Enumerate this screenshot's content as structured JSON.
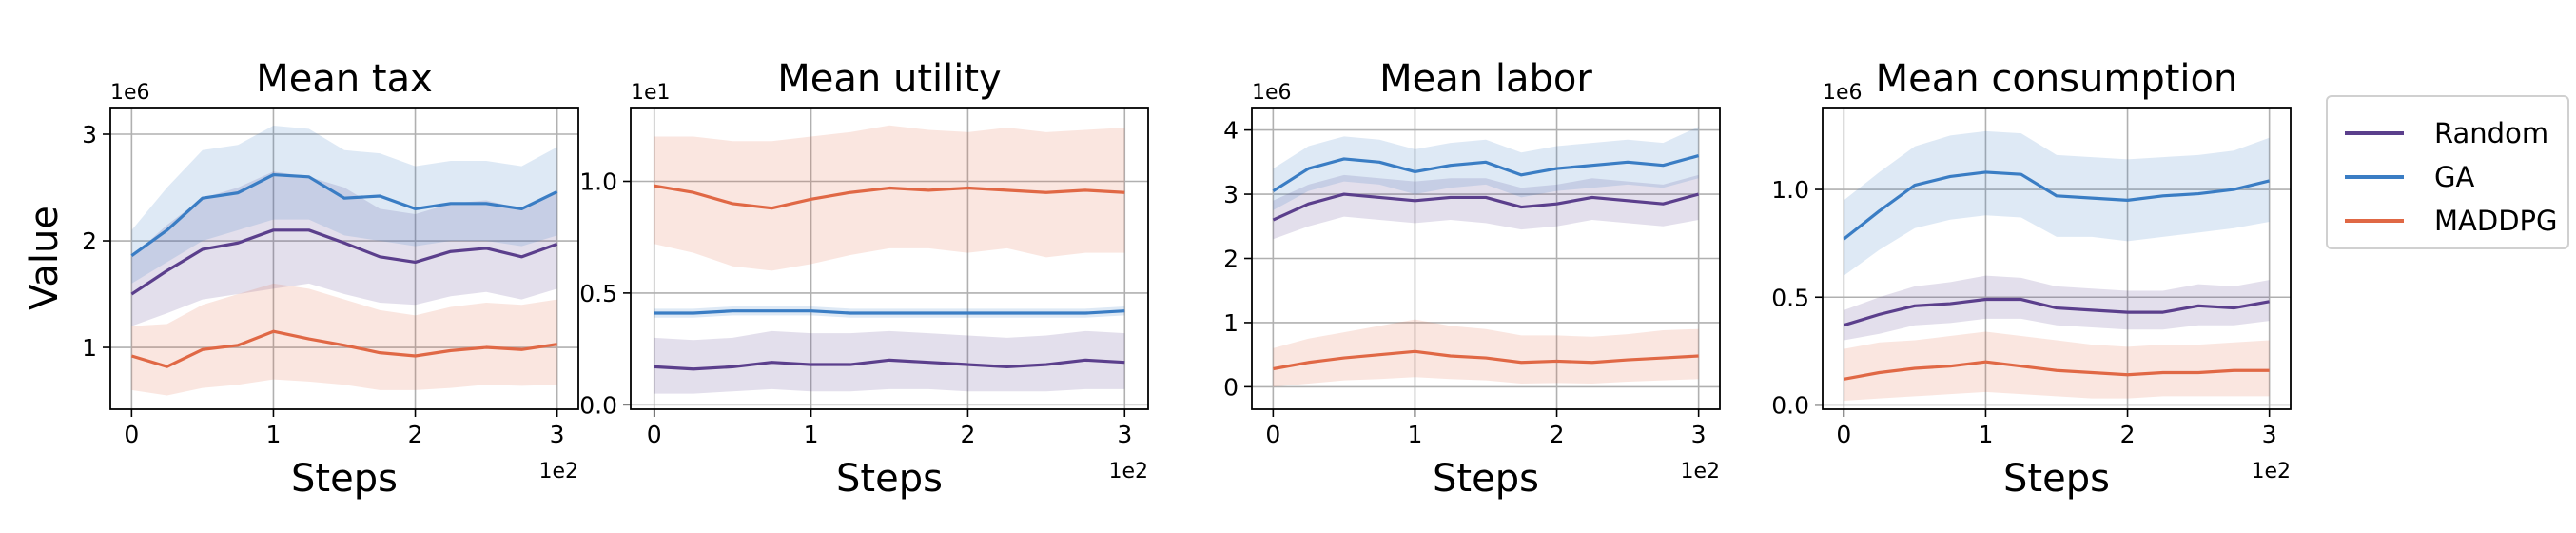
{
  "figure": {
    "ylabel": "Value",
    "colors": {
      "Random": "#5b3f8c",
      "GA": "#3a7dc4",
      "MADDPG": "#e06845"
    }
  },
  "legend": {
    "items": [
      {
        "label": "Random",
        "color": "#5b3f8c"
      },
      {
        "label": "GA",
        "color": "#3a7dc4"
      },
      {
        "label": "MADDPG",
        "color": "#e06845"
      }
    ]
  },
  "chart_data": [
    {
      "type": "line",
      "title": "Mean tax",
      "xlabel": "Steps",
      "ylabel": "Value",
      "x_offset_text": "1e2",
      "y_offset_text": "1e6",
      "xlim": [
        -0.15,
        3.15
      ],
      "ylim": [
        0.42,
        3.25
      ],
      "xticks": [
        0,
        1,
        2,
        3
      ],
      "yticks": [
        1,
        2,
        3
      ],
      "grid": true,
      "x": [
        0,
        0.25,
        0.5,
        0.75,
        1.0,
        1.25,
        1.5,
        1.75,
        2.0,
        2.25,
        2.5,
        2.75,
        3.0
      ],
      "series": [
        {
          "name": "Random",
          "values": [
            1.5,
            1.72,
            1.92,
            1.98,
            2.1,
            2.1,
            1.98,
            1.85,
            1.8,
            1.9,
            1.93,
            1.85,
            1.97
          ],
          "lower": [
            1.2,
            1.32,
            1.45,
            1.5,
            1.55,
            1.6,
            1.5,
            1.42,
            1.4,
            1.48,
            1.52,
            1.45,
            1.55
          ],
          "upper": [
            1.85,
            2.15,
            2.4,
            2.5,
            2.65,
            2.6,
            2.5,
            2.3,
            2.25,
            2.35,
            2.38,
            2.3,
            2.45
          ]
        },
        {
          "name": "GA",
          "values": [
            1.86,
            2.1,
            2.4,
            2.45,
            2.62,
            2.6,
            2.4,
            2.42,
            2.3,
            2.35,
            2.35,
            2.3,
            2.46
          ],
          "lower": [
            1.6,
            1.8,
            2.0,
            2.1,
            2.2,
            2.2,
            2.05,
            2.0,
            1.95,
            2.0,
            2.0,
            1.95,
            2.05
          ],
          "upper": [
            2.1,
            2.5,
            2.85,
            2.9,
            3.08,
            3.05,
            2.85,
            2.82,
            2.7,
            2.75,
            2.75,
            2.7,
            2.88
          ]
        },
        {
          "name": "MADDPG",
          "values": [
            0.92,
            0.82,
            0.98,
            1.02,
            1.15,
            1.08,
            1.02,
            0.95,
            0.92,
            0.97,
            1.0,
            0.98,
            1.03
          ],
          "lower": [
            0.6,
            0.55,
            0.62,
            0.65,
            0.7,
            0.68,
            0.65,
            0.6,
            0.6,
            0.62,
            0.65,
            0.64,
            0.65
          ],
          "upper": [
            1.2,
            1.22,
            1.4,
            1.5,
            1.6,
            1.55,
            1.45,
            1.35,
            1.3,
            1.38,
            1.42,
            1.4,
            1.45
          ]
        }
      ]
    },
    {
      "type": "line",
      "title": "Mean utility",
      "xlabel": "Steps",
      "ylabel": "",
      "x_offset_text": "1e2",
      "y_offset_text": "1e1",
      "xlim": [
        -0.15,
        3.15
      ],
      "ylim": [
        -0.02,
        1.33
      ],
      "xticks": [
        0,
        1,
        2,
        3
      ],
      "yticks": [
        0.0,
        0.5,
        1.0
      ],
      "ytick_labels": [
        "0.0",
        "0.5",
        "1.0"
      ],
      "grid": true,
      "x": [
        0,
        0.25,
        0.5,
        0.75,
        1.0,
        1.25,
        1.5,
        1.75,
        2.0,
        2.25,
        2.5,
        2.75,
        3.0
      ],
      "series": [
        {
          "name": "Random",
          "values": [
            0.17,
            0.16,
            0.17,
            0.19,
            0.18,
            0.18,
            0.2,
            0.19,
            0.18,
            0.17,
            0.18,
            0.2,
            0.19
          ],
          "lower": [
            0.05,
            0.05,
            0.06,
            0.07,
            0.06,
            0.06,
            0.07,
            0.07,
            0.06,
            0.06,
            0.06,
            0.07,
            0.07
          ],
          "upper": [
            0.3,
            0.29,
            0.3,
            0.33,
            0.32,
            0.32,
            0.33,
            0.32,
            0.31,
            0.3,
            0.31,
            0.33,
            0.32
          ]
        },
        {
          "name": "GA",
          "values": [
            0.41,
            0.41,
            0.42,
            0.42,
            0.42,
            0.41,
            0.41,
            0.41,
            0.41,
            0.41,
            0.41,
            0.41,
            0.42
          ],
          "lower": [
            0.39,
            0.39,
            0.4,
            0.4,
            0.4,
            0.39,
            0.39,
            0.39,
            0.39,
            0.39,
            0.39,
            0.39,
            0.4
          ],
          "upper": [
            0.43,
            0.43,
            0.44,
            0.44,
            0.44,
            0.43,
            0.43,
            0.43,
            0.43,
            0.43,
            0.43,
            0.43,
            0.44
          ]
        },
        {
          "name": "MADDPG",
          "values": [
            0.98,
            0.95,
            0.9,
            0.88,
            0.92,
            0.95,
            0.97,
            0.96,
            0.97,
            0.96,
            0.95,
            0.96,
            0.95
          ],
          "lower": [
            0.72,
            0.68,
            0.62,
            0.6,
            0.63,
            0.67,
            0.7,
            0.7,
            0.68,
            0.7,
            0.66,
            0.68,
            0.68
          ],
          "upper": [
            1.2,
            1.2,
            1.18,
            1.18,
            1.2,
            1.22,
            1.25,
            1.23,
            1.22,
            1.24,
            1.22,
            1.23,
            1.24
          ]
        }
      ]
    },
    {
      "type": "line",
      "title": "Mean labor",
      "xlabel": "Steps",
      "ylabel": "",
      "x_offset_text": "1e2",
      "y_offset_text": "1e6",
      "xlim": [
        -0.15,
        3.15
      ],
      "ylim": [
        -0.35,
        4.35
      ],
      "xticks": [
        0,
        1,
        2,
        3
      ],
      "yticks": [
        0,
        1,
        2,
        3,
        4
      ],
      "grid": true,
      "x": [
        0,
        0.25,
        0.5,
        0.75,
        1.0,
        1.25,
        1.5,
        1.75,
        2.0,
        2.25,
        2.5,
        2.75,
        3.0
      ],
      "series": [
        {
          "name": "Random",
          "values": [
            2.6,
            2.85,
            3.0,
            2.95,
            2.9,
            2.95,
            2.95,
            2.8,
            2.85,
            2.95,
            2.9,
            2.85,
            3.0
          ],
          "lower": [
            2.3,
            2.5,
            2.65,
            2.6,
            2.55,
            2.6,
            2.55,
            2.45,
            2.5,
            2.6,
            2.55,
            2.5,
            2.6
          ],
          "upper": [
            2.9,
            3.15,
            3.3,
            3.25,
            3.2,
            3.25,
            3.25,
            3.1,
            3.15,
            3.25,
            3.2,
            3.15,
            3.3
          ]
        },
        {
          "name": "GA",
          "values": [
            3.05,
            3.4,
            3.55,
            3.5,
            3.35,
            3.45,
            3.5,
            3.3,
            3.4,
            3.45,
            3.5,
            3.45,
            3.6
          ],
          "lower": [
            2.75,
            3.05,
            3.2,
            3.15,
            3.0,
            3.1,
            3.15,
            2.95,
            3.05,
            3.1,
            3.15,
            3.1,
            3.25
          ],
          "upper": [
            3.4,
            3.75,
            3.9,
            3.85,
            3.7,
            3.8,
            3.85,
            3.65,
            3.75,
            3.8,
            3.85,
            3.8,
            4.05
          ]
        },
        {
          "name": "MADDPG",
          "values": [
            0.28,
            0.38,
            0.45,
            0.5,
            0.55,
            0.48,
            0.45,
            0.38,
            0.4,
            0.38,
            0.42,
            0.45,
            0.48
          ],
          "lower": [
            0.0,
            0.05,
            0.1,
            0.12,
            0.15,
            0.12,
            0.1,
            0.05,
            0.06,
            0.05,
            0.08,
            0.1,
            0.12
          ],
          "upper": [
            0.6,
            0.75,
            0.85,
            0.95,
            1.05,
            0.95,
            0.9,
            0.8,
            0.8,
            0.78,
            0.82,
            0.88,
            0.9
          ]
        }
      ]
    },
    {
      "type": "line",
      "title": "Mean consumption",
      "xlabel": "Steps",
      "ylabel": "",
      "x_offset_text": "1e2",
      "y_offset_text": "1e6",
      "xlim": [
        -0.15,
        3.15
      ],
      "ylim": [
        -0.02,
        1.38
      ],
      "xticks": [
        0,
        1,
        2,
        3
      ],
      "yticks": [
        0.0,
        0.5,
        1.0
      ],
      "ytick_labels": [
        "0.0",
        "0.5",
        "1.0"
      ],
      "grid": true,
      "x": [
        0,
        0.25,
        0.5,
        0.75,
        1.0,
        1.25,
        1.5,
        1.75,
        2.0,
        2.25,
        2.5,
        2.75,
        3.0
      ],
      "series": [
        {
          "name": "Random",
          "values": [
            0.37,
            0.42,
            0.46,
            0.47,
            0.49,
            0.49,
            0.45,
            0.44,
            0.43,
            0.43,
            0.46,
            0.45,
            0.48
          ],
          "lower": [
            0.3,
            0.33,
            0.37,
            0.38,
            0.4,
            0.4,
            0.37,
            0.36,
            0.35,
            0.35,
            0.37,
            0.37,
            0.39
          ],
          "upper": [
            0.44,
            0.5,
            0.55,
            0.57,
            0.6,
            0.59,
            0.55,
            0.54,
            0.53,
            0.53,
            0.56,
            0.55,
            0.58
          ]
        },
        {
          "name": "GA",
          "values": [
            0.77,
            0.9,
            1.02,
            1.06,
            1.08,
            1.07,
            0.97,
            0.96,
            0.95,
            0.97,
            0.98,
            1.0,
            1.04
          ],
          "lower": [
            0.6,
            0.72,
            0.82,
            0.86,
            0.88,
            0.87,
            0.78,
            0.78,
            0.76,
            0.78,
            0.8,
            0.82,
            0.85
          ],
          "upper": [
            0.95,
            1.08,
            1.2,
            1.25,
            1.27,
            1.26,
            1.16,
            1.15,
            1.14,
            1.15,
            1.16,
            1.18,
            1.24
          ]
        },
        {
          "name": "MADDPG",
          "values": [
            0.12,
            0.15,
            0.17,
            0.18,
            0.2,
            0.18,
            0.16,
            0.15,
            0.14,
            0.15,
            0.15,
            0.16,
            0.16
          ],
          "lower": [
            0.02,
            0.03,
            0.04,
            0.05,
            0.06,
            0.05,
            0.04,
            0.03,
            0.03,
            0.04,
            0.04,
            0.04,
            0.04
          ],
          "upper": [
            0.26,
            0.29,
            0.3,
            0.32,
            0.34,
            0.32,
            0.3,
            0.28,
            0.27,
            0.28,
            0.28,
            0.29,
            0.3
          ]
        }
      ]
    }
  ]
}
